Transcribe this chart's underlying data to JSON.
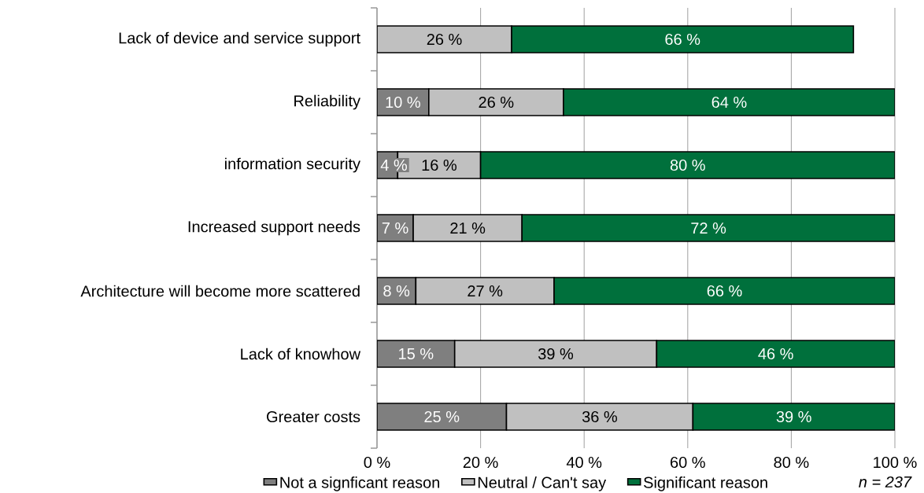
{
  "chart_data": {
    "type": "bar",
    "orientation": "horizontal",
    "stacked": true,
    "categories": [
      "Lack of device and service support",
      "Reliability",
      "information security",
      "Increased support needs",
      "Architecture will become more scattered",
      "Lack of knowhow",
      "Greater costs"
    ],
    "series": [
      {
        "name": "Not a signficant reason",
        "color": "#7f7f7f",
        "values": [
          0,
          10,
          4,
          7,
          7.5,
          15,
          25
        ],
        "value_labels": [
          null,
          "10 %",
          "4 %",
          "7 %",
          "8 %",
          "15 %",
          "25 %"
        ]
      },
      {
        "name": "Neutral / Can't say",
        "color": "#c0c0c0",
        "values": [
          26,
          26,
          16,
          21,
          26.7,
          39,
          36
        ],
        "value_labels": [
          "26 %",
          "26 %",
          "16 %",
          "21 %",
          "27 %",
          "39 %",
          "36 %"
        ]
      },
      {
        "name": "Significant reason",
        "color": "#00703c",
        "values": [
          66,
          64,
          80,
          72,
          65.8,
          46,
          39
        ],
        "value_labels": [
          "66 %",
          "64 %",
          "80 %",
          "72 %",
          "66 %",
          "46 %",
          "39 %"
        ]
      }
    ],
    "xlim": [
      0,
      100
    ],
    "xticks": [
      {
        "value": 0,
        "label": "0 %"
      },
      {
        "value": 20,
        "label": "20 %"
      },
      {
        "value": 40,
        "label": "40 %"
      },
      {
        "value": 60,
        "label": "60 %"
      },
      {
        "value": 80,
        "label": "80 %"
      },
      {
        "value": 100,
        "label": "100 %"
      }
    ],
    "grid": "x",
    "legend": "bottom",
    "annotations": [
      "n = 237"
    ]
  }
}
